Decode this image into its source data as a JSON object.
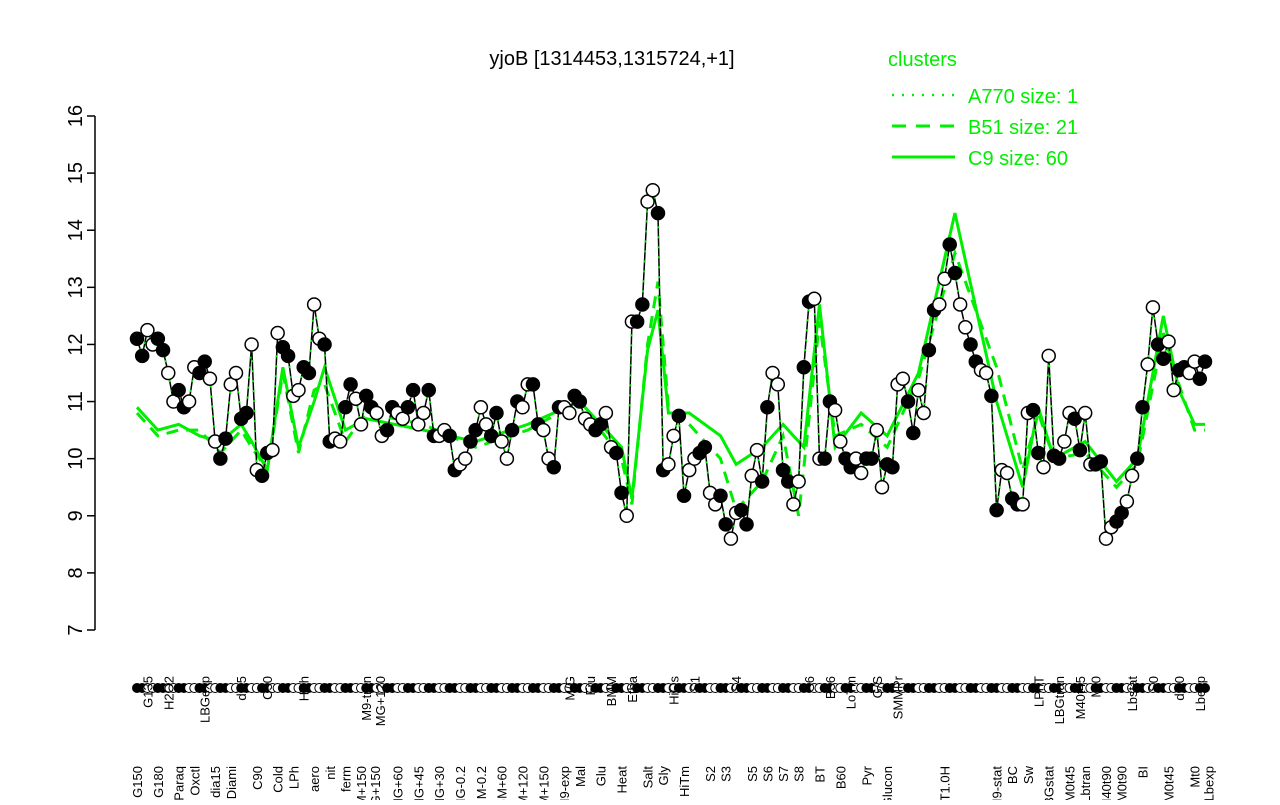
{
  "chart_data": {
    "type": "line",
    "title": "yjoB [1314453,1315724,+1]",
    "ylim": [
      7,
      16
    ],
    "yticks": [
      7,
      8,
      9,
      10,
      11,
      12,
      13,
      14,
      15,
      16
    ],
    "grid": false,
    "legend": {
      "title": "clusters",
      "placement": "top-right",
      "entries": [
        {
          "label": "A770 size: 1",
          "style": "dotted"
        },
        {
          "label": "B51 size: 21",
          "style": "dashed"
        },
        {
          "label": "C9 size: 60",
          "style": "solid"
        }
      ]
    },
    "colors": {
      "cluster": "#00ee00",
      "points": "#000000"
    },
    "series": [
      {
        "name": "A770 size: 1",
        "values": [
          12.1,
          11.8,
          12.25,
          12.0,
          12.1,
          11.9,
          11.5,
          11.0,
          11.2,
          10.9,
          11.0,
          11.6,
          11.5,
          11.7,
          11.4,
          10.3,
          10.0,
          10.35,
          11.3,
          11.5,
          10.7,
          10.8,
          12.0,
          9.8,
          9.7,
          10.1,
          10.15,
          12.2,
          11.95,
          11.8,
          11.1,
          11.2,
          11.6,
          11.5,
          12.7,
          12.1,
          12.0,
          10.3,
          10.35,
          10.3,
          10.9,
          11.3,
          11.05,
          10.6,
          11.1,
          10.9,
          10.8,
          10.4,
          10.5,
          10.9,
          10.8,
          10.7,
          10.9,
          11.2,
          10.6,
          10.8,
          11.2,
          10.4,
          10.4,
          10.5,
          10.4,
          9.8,
          9.9,
          10.0,
          10.3,
          10.5,
          10.9,
          10.6,
          10.4,
          10.8,
          10.3,
          10.0,
          10.5,
          11.0,
          10.9,
          11.3,
          11.3,
          10.6,
          10.5,
          10.0,
          9.85,
          10.9,
          10.9,
          10.8,
          11.1,
          11.0,
          10.7,
          10.6,
          10.5,
          10.6,
          10.8,
          10.2,
          10.1,
          9.4,
          9.0,
          12.4,
          12.4,
          12.7,
          14.5,
          14.7,
          14.3,
          9.8,
          9.9,
          10.4,
          10.75,
          9.35,
          9.8,
          10.0,
          10.1,
          10.2,
          9.4,
          9.2,
          9.35,
          8.85,
          8.6,
          9.05,
          9.1,
          8.85,
          9.7,
          10.15,
          9.6,
          10.9,
          11.5,
          11.3,
          9.8,
          9.6,
          9.2,
          9.6,
          11.6,
          12.75,
          12.8,
          10.0,
          10.0,
          11.0,
          10.85,
          10.3,
          10.0,
          9.85,
          10.0,
          9.75,
          10.0,
          10.0,
          10.5,
          9.5,
          9.9,
          9.85,
          11.3,
          11.4,
          11.0,
          10.45,
          11.2,
          10.8,
          11.9,
          12.6,
          12.7,
          13.15,
          13.75,
          13.25,
          12.7,
          12.3,
          12.0,
          11.7,
          11.55,
          11.5,
          11.1,
          9.1,
          9.8,
          9.75,
          9.3,
          9.2,
          9.2,
          10.8,
          10.85,
          10.1,
          9.85,
          11.8,
          10.05,
          10.0,
          10.3,
          10.8,
          10.7,
          10.15,
          10.8,
          9.9,
          9.9,
          9.95,
          8.6,
          8.8,
          8.9,
          9.05,
          9.25,
          9.7,
          10.0,
          10.9,
          11.65,
          12.65,
          12.0,
          11.75,
          12.05,
          11.2,
          11.55,
          11.6,
          11.5,
          11.7,
          11.4,
          11.7
        ]
      },
      {
        "name": "B51 size: 21",
        "points": [
          [
            0,
            10.8
          ],
          [
            4,
            10.4
          ],
          [
            8,
            10.5
          ],
          [
            12,
            10.5
          ],
          [
            16,
            10.1
          ],
          [
            20,
            10.5
          ],
          [
            22,
            10.2
          ],
          [
            25,
            9.8
          ],
          [
            28,
            11.5
          ],
          [
            31,
            10.1
          ],
          [
            34,
            11.2
          ],
          [
            36,
            11.3
          ],
          [
            40,
            10.3
          ],
          [
            44,
            10.8
          ],
          [
            55,
            10.6
          ],
          [
            65,
            10.2
          ],
          [
            75,
            10.5
          ],
          [
            85,
            11.0
          ],
          [
            93,
            10.0
          ],
          [
            95,
            9.2
          ],
          [
            98,
            12.0
          ],
          [
            100,
            13.1
          ],
          [
            102,
            10.9
          ],
          [
            106,
            10.6
          ],
          [
            112,
            10.0
          ],
          [
            115,
            9.1
          ],
          [
            120,
            9.6
          ],
          [
            124,
            10.4
          ],
          [
            127,
            9.0
          ],
          [
            131,
            12.4
          ],
          [
            134,
            10.4
          ],
          [
            139,
            10.6
          ],
          [
            144,
            10.2
          ],
          [
            150,
            11.4
          ],
          [
            157,
            13.6
          ],
          [
            165,
            11.6
          ],
          [
            170,
            9.8
          ],
          [
            173,
            10.8
          ],
          [
            176,
            10.0
          ],
          [
            182,
            10.1
          ],
          [
            188,
            9.5
          ],
          [
            192,
            9.9
          ],
          [
            197,
            12.2
          ],
          [
            200,
            11.3
          ],
          [
            203,
            10.5
          ],
          [
            205,
            10.5
          ]
        ]
      },
      {
        "name": "C9 size: 60",
        "points": [
          [
            0,
            10.9
          ],
          [
            4,
            10.5
          ],
          [
            8,
            10.6
          ],
          [
            12,
            10.4
          ],
          [
            16,
            10.3
          ],
          [
            20,
            10.6
          ],
          [
            22,
            10.3
          ],
          [
            25,
            9.8
          ],
          [
            28,
            11.6
          ],
          [
            31,
            10.2
          ],
          [
            34,
            11.0
          ],
          [
            36,
            11.6
          ],
          [
            40,
            10.5
          ],
          [
            44,
            10.7
          ],
          [
            55,
            10.5
          ],
          [
            65,
            10.3
          ],
          [
            75,
            10.6
          ],
          [
            85,
            11.0
          ],
          [
            93,
            10.2
          ],
          [
            95,
            9.3
          ],
          [
            98,
            11.9
          ],
          [
            100,
            12.6
          ],
          [
            102,
            10.8
          ],
          [
            106,
            10.8
          ],
          [
            112,
            10.4
          ],
          [
            115,
            9.9
          ],
          [
            120,
            10.2
          ],
          [
            124,
            10.6
          ],
          [
            128,
            10.2
          ],
          [
            131,
            12.7
          ],
          [
            134,
            10.2
          ],
          [
            139,
            10.8
          ],
          [
            144,
            10.4
          ],
          [
            150,
            11.5
          ],
          [
            157,
            14.3
          ],
          [
            165,
            11.0
          ],
          [
            170,
            9.5
          ],
          [
            173,
            10.9
          ],
          [
            176,
            10.0
          ],
          [
            182,
            10.3
          ],
          [
            188,
            9.6
          ],
          [
            192,
            10.0
          ],
          [
            197,
            12.5
          ],
          [
            200,
            11.2
          ],
          [
            203,
            10.6
          ],
          [
            205,
            10.6
          ]
        ]
      }
    ],
    "xlabels": [
      {
        "label": "G150",
        "i": 0
      },
      {
        "label": "G135",
        "i": 2
      },
      {
        "label": "G180",
        "i": 4
      },
      {
        "label": "H2O2",
        "i": 6
      },
      {
        "label": "Paraq",
        "i": 8
      },
      {
        "label": "Oxctl",
        "i": 11
      },
      {
        "label": "LBGexp",
        "i": 13
      },
      {
        "label": "dia15",
        "i": 15
      },
      {
        "label": "Diami",
        "i": 18
      },
      {
        "label": "dia5",
        "i": 20
      },
      {
        "label": "C90",
        "i": 23
      },
      {
        "label": "C30",
        "i": 25
      },
      {
        "label": "Cold",
        "i": 27
      },
      {
        "label": "LPh",
        "i": 30
      },
      {
        "label": "HPh",
        "i": 32
      },
      {
        "label": "aero",
        "i": 34
      },
      {
        "label": "nit",
        "i": 37
      },
      {
        "label": "ferm",
        "i": 40
      },
      {
        "label": "GM+150",
        "i": 43
      },
      {
        "label": "M9-tran",
        "i": 44
      },
      {
        "label": "MG+150",
        "i": 45
      },
      {
        "label": "MG+120",
        "i": 46
      },
      {
        "label": "MG+60",
        "i": 50
      },
      {
        "label": "MG+45",
        "i": 54
      },
      {
        "label": "MG+30",
        "i": 58
      },
      {
        "label": "MG-0.2",
        "i": 62
      },
      {
        "label": "GM-0.2",
        "i": 66
      },
      {
        "label": "GM+60",
        "i": 70
      },
      {
        "label": "GM+120",
        "i": 74
      },
      {
        "label": "GM+150",
        "i": 78
      },
      {
        "label": "M9-exp",
        "i": 82
      },
      {
        "label": "M/G",
        "i": 83
      },
      {
        "label": "Mal",
        "i": 85
      },
      {
        "label": "Fru",
        "i": 87
      },
      {
        "label": "Glu",
        "i": 89
      },
      {
        "label": "BMM",
        "i": 91
      },
      {
        "label": "Heat",
        "i": 93
      },
      {
        "label": "Etha",
        "i": 95
      },
      {
        "label": "Salt",
        "i": 98
      },
      {
        "label": "Gly",
        "i": 101
      },
      {
        "label": "HiTm",
        "i": 105
      },
      {
        "label": "HiOs",
        "i": 103
      },
      {
        "label": "S1",
        "i": 107
      },
      {
        "label": "S2",
        "i": 110
      },
      {
        "label": "S3",
        "i": 113
      },
      {
        "label": "S4",
        "i": 115
      },
      {
        "label": "S5",
        "i": 118
      },
      {
        "label": "S6",
        "i": 121
      },
      {
        "label": "S7",
        "i": 124
      },
      {
        "label": "S8",
        "i": 127
      },
      {
        "label": "S6",
        "i": 129
      },
      {
        "label": "BT",
        "i": 131
      },
      {
        "label": "B36",
        "i": 133
      },
      {
        "label": "B60",
        "i": 135
      },
      {
        "label": "LoTm",
        "i": 137
      },
      {
        "label": "Pyr",
        "i": 140
      },
      {
        "label": "G/S",
        "i": 142
      },
      {
        "label": "Glucon",
        "i": 144
      },
      {
        "label": "SMMPr",
        "i": 146
      },
      {
        "label": "T1.0H",
        "i": 155
      },
      {
        "label": "M9-stat",
        "i": 165
      },
      {
        "label": "BC",
        "i": 168
      },
      {
        "label": "Sw",
        "i": 171
      },
      {
        "label": "LPhT",
        "i": 173
      },
      {
        "label": "LBGstat",
        "i": 175
      },
      {
        "label": "LBGtran",
        "i": 177
      },
      {
        "label": "M0t45",
        "i": 179
      },
      {
        "label": "M40t45",
        "i": 181
      },
      {
        "label": "Lbtran",
        "i": 182
      },
      {
        "label": "Mt0",
        "i": 184
      },
      {
        "label": "M40t90",
        "i": 186
      },
      {
        "label": "M0t90",
        "i": 189
      },
      {
        "label": "Lbstat",
        "i": 191
      },
      {
        "label": "BI",
        "i": 193
      },
      {
        "label": "S0",
        "i": 195
      },
      {
        "label": "M0t45",
        "i": 198
      },
      {
        "label": "dia0",
        "i": 200
      },
      {
        "label": "Mt0",
        "i": 203
      },
      {
        "label": "Lbexp",
        "i": 204
      },
      {
        "label": "Lbexp",
        "i": 205
      }
    ]
  }
}
